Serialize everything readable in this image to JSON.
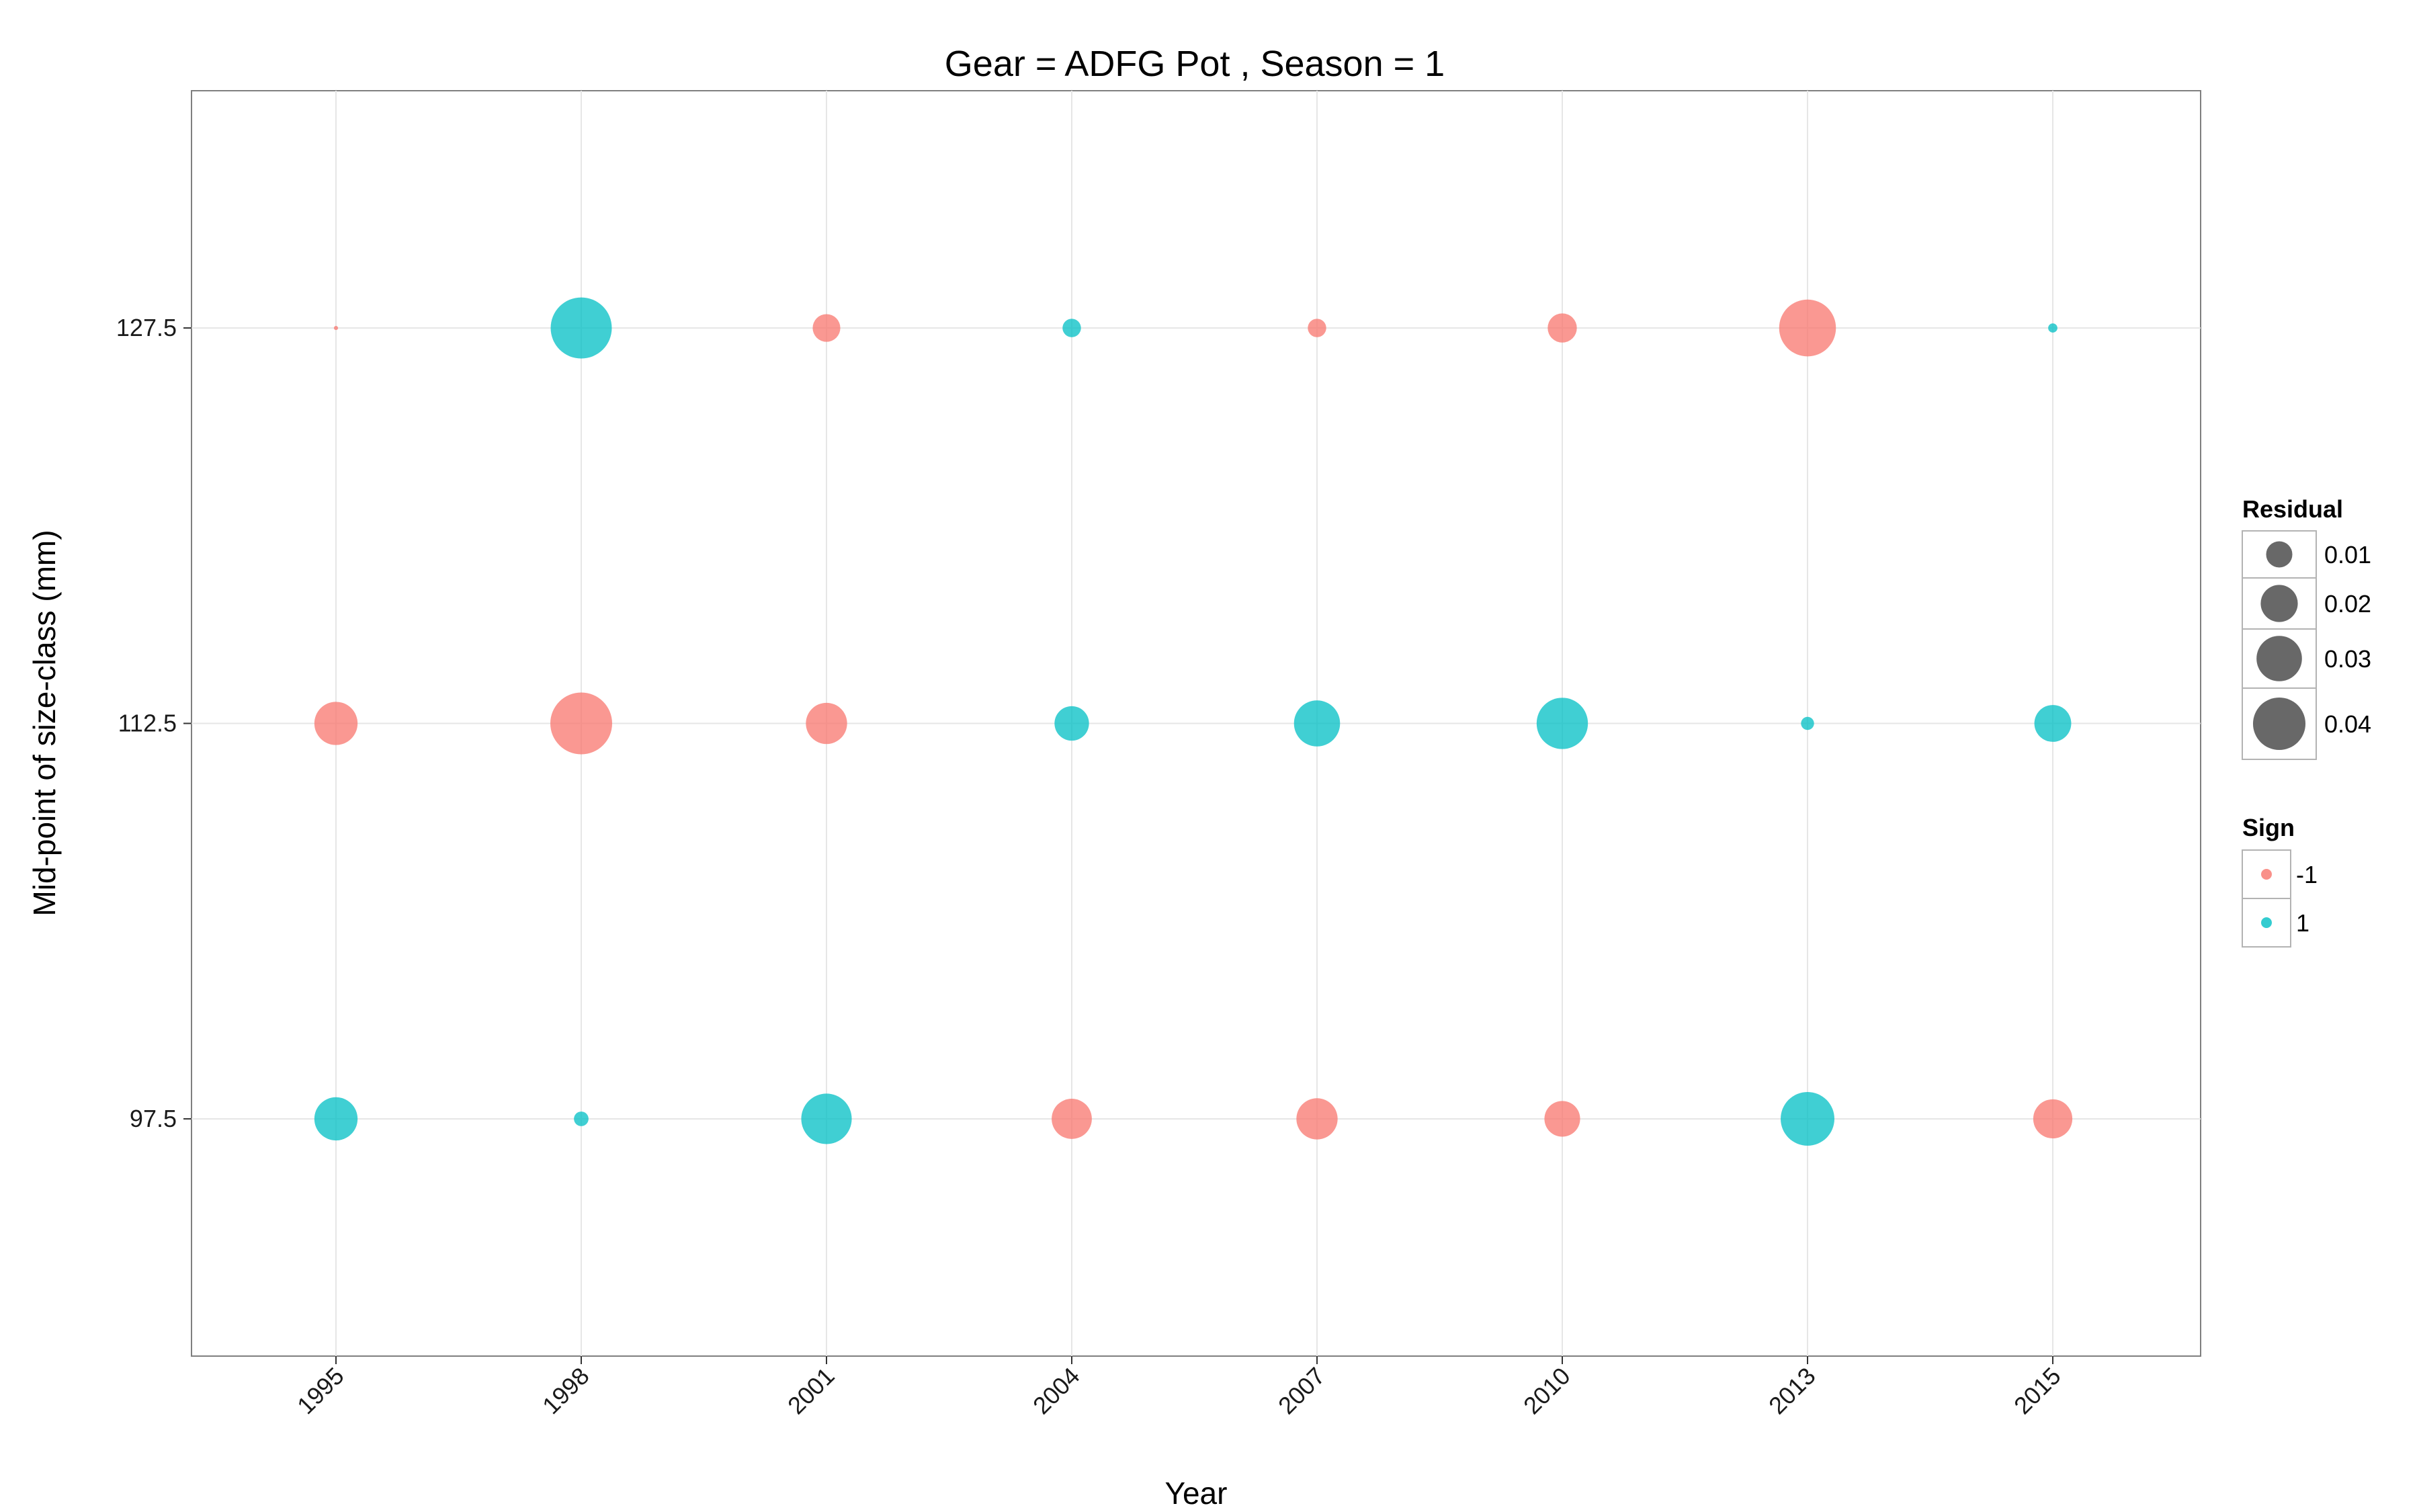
{
  "chart_data": {
    "type": "scatter",
    "title": "Gear = ADFG Pot , Season = 1",
    "xlabel": "Year",
    "ylabel": "Mid-point of size-class (mm)",
    "x_ticks": [
      "1995",
      "1998",
      "2001",
      "2004",
      "2007",
      "2010",
      "2013",
      "2015"
    ],
    "y_ticks": [
      97.5,
      112.5,
      127.5
    ],
    "y_tick_labels": [
      "97.5",
      "112.5",
      "127.5"
    ],
    "ylim": [
      88.5,
      136.5
    ],
    "grid": true,
    "legend_position": "right",
    "size_legend": {
      "title": "Residual",
      "labels": [
        "0.01",
        "0.02",
        "0.03",
        "0.04"
      ],
      "values": [
        0.01,
        0.02,
        0.03,
        0.04
      ]
    },
    "color_legend": {
      "title": "Sign",
      "labels": [
        "-1",
        "1"
      ],
      "colors": [
        "#F8766D",
        "#00BFC4"
      ]
    },
    "points": [
      {
        "x": "1995",
        "y": 127.5,
        "residual": 0.0002,
        "sign": -1
      },
      {
        "x": "1995",
        "y": 112.5,
        "residual": 0.022,
        "sign": -1
      },
      {
        "x": "1995",
        "y": 97.5,
        "residual": 0.022,
        "sign": 1
      },
      {
        "x": "1998",
        "y": 127.5,
        "residual": 0.044,
        "sign": 1
      },
      {
        "x": "1998",
        "y": 112.5,
        "residual": 0.045,
        "sign": -1
      },
      {
        "x": "1998",
        "y": 97.5,
        "residual": 0.0025,
        "sign": 1
      },
      {
        "x": "2001",
        "y": 127.5,
        "residual": 0.009,
        "sign": -1
      },
      {
        "x": "2001",
        "y": 112.5,
        "residual": 0.02,
        "sign": -1
      },
      {
        "x": "2001",
        "y": 97.5,
        "residual": 0.03,
        "sign": 1
      },
      {
        "x": "2004",
        "y": 127.5,
        "residual": 0.004,
        "sign": 1
      },
      {
        "x": "2004",
        "y": 112.5,
        "residual": 0.014,
        "sign": 1
      },
      {
        "x": "2004",
        "y": 97.5,
        "residual": 0.019,
        "sign": -1
      },
      {
        "x": "2007",
        "y": 127.5,
        "residual": 0.004,
        "sign": -1
      },
      {
        "x": "2007",
        "y": 112.5,
        "residual": 0.025,
        "sign": 1
      },
      {
        "x": "2007",
        "y": 97.5,
        "residual": 0.02,
        "sign": -1
      },
      {
        "x": "2010",
        "y": 127.5,
        "residual": 0.01,
        "sign": -1
      },
      {
        "x": "2010",
        "y": 112.5,
        "residual": 0.031,
        "sign": 1
      },
      {
        "x": "2010",
        "y": 97.5,
        "residual": 0.015,
        "sign": -1
      },
      {
        "x": "2013",
        "y": 127.5,
        "residual": 0.038,
        "sign": -1
      },
      {
        "x": "2013",
        "y": 112.5,
        "residual": 0.002,
        "sign": 1
      },
      {
        "x": "2013",
        "y": 97.5,
        "residual": 0.034,
        "sign": 1
      },
      {
        "x": "2015",
        "y": 127.5,
        "residual": 0.001,
        "sign": 1
      },
      {
        "x": "2015",
        "y": 112.5,
        "residual": 0.016,
        "sign": 1
      },
      {
        "x": "2015",
        "y": 97.5,
        "residual": 0.018,
        "sign": -1
      }
    ]
  }
}
